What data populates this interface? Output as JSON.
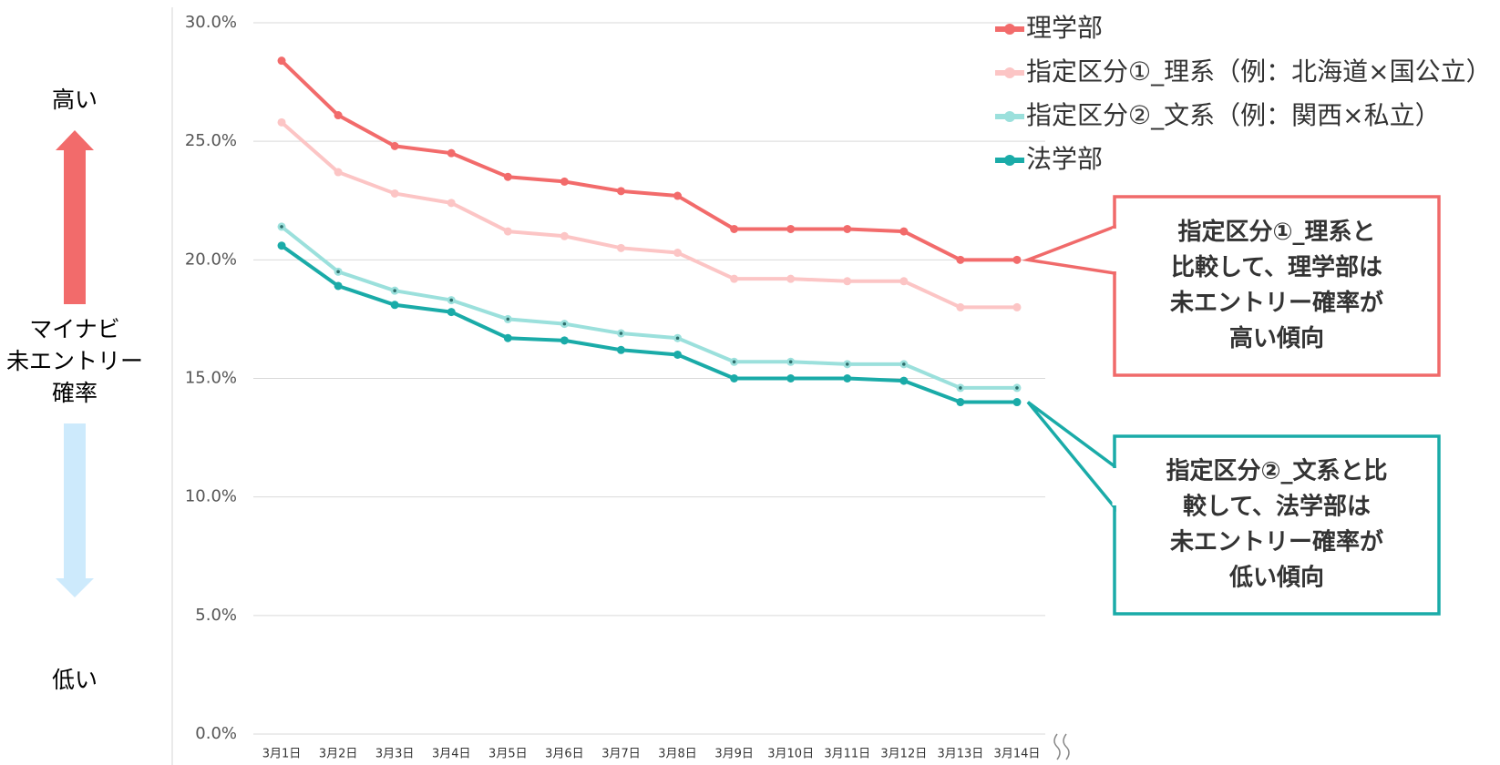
{
  "chart_data": {
    "type": "line",
    "categories": [
      "3月1日",
      "3月2日",
      "3月3日",
      "3月4日",
      "3月5日",
      "3月6日",
      "3月7日",
      "3月8日",
      "3月9日",
      "3月10日",
      "3月11日",
      "3月12日",
      "3月13日",
      "3月14日"
    ],
    "series": [
      {
        "name": "理学部",
        "color": "#f26b6b",
        "values": [
          28.4,
          26.1,
          24.8,
          24.5,
          23.5,
          23.3,
          22.9,
          22.7,
          21.3,
          21.3,
          21.3,
          21.2,
          20.0,
          20.0
        ]
      },
      {
        "name": "指定区分①_理系（例：北海道×国公立）",
        "color": "#fcc5c5",
        "values": [
          25.8,
          23.7,
          22.8,
          22.4,
          21.2,
          21.0,
          20.5,
          20.3,
          19.2,
          19.2,
          19.1,
          19.1,
          18.0,
          18.0
        ]
      },
      {
        "name": "指定区分②_文系（例：関西×私立）",
        "color": "#9be0dc",
        "values": [
          21.4,
          19.5,
          18.7,
          18.3,
          17.5,
          17.3,
          16.9,
          16.7,
          15.7,
          15.7,
          15.6,
          15.6,
          14.6,
          14.6
        ]
      },
      {
        "name": "法学部",
        "color": "#1aaba8",
        "values": [
          20.6,
          18.9,
          18.1,
          17.8,
          16.7,
          16.6,
          16.2,
          16.0,
          15.0,
          15.0,
          15.0,
          14.9,
          14.0,
          14.0
        ]
      }
    ],
    "ylim": [
      0,
      30
    ],
    "yticks": [
      {
        "value": 0,
        "label": "0.0%"
      },
      {
        "value": 5,
        "label": "5.0%"
      },
      {
        "value": 10,
        "label": "10.0%"
      },
      {
        "value": 15,
        "label": "15.0%"
      },
      {
        "value": 20,
        "label": "20.0%"
      },
      {
        "value": 25,
        "label": "25.0%"
      },
      {
        "value": 30,
        "label": "30.0%"
      }
    ],
    "grid": true,
    "legend": "top-right",
    "side_labels": {
      "high": "高い",
      "axis_label": [
        "マイナビ",
        "未エントリー",
        "確率"
      ],
      "low": "低い"
    },
    "annotations": [
      {
        "lines": [
          "指定区分①_理系と",
          "比較して、理学部は",
          "未エントリー確率が",
          "高い傾向"
        ],
        "color": "#f06a6a"
      },
      {
        "lines": [
          "指定区分②_文系と比",
          "較して、法学部は",
          "未エントリー確率が",
          "低い傾向"
        ],
        "color": "#1aaba8"
      }
    ]
  }
}
